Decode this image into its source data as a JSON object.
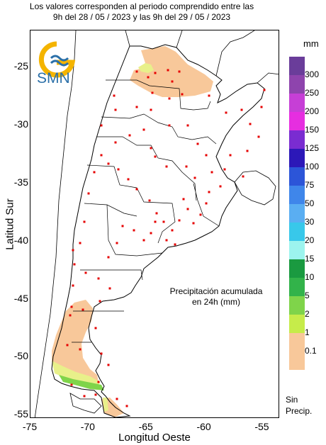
{
  "header": {
    "line1": "Los valores corresponden al periodo comprendido entre las",
    "line2": "9h del 28 / 05 / 2023  y las 9h del 29 / 05 / 2023"
  },
  "axes": {
    "xlabel": "Longitud Oeste",
    "ylabel": "Latitud Sur",
    "x_ticks": [
      "-75",
      "-70",
      "-65",
      "-60",
      "-55"
    ],
    "y_ticks": [
      "-25",
      "-30",
      "-35",
      "-40",
      "-45",
      "-50",
      "-55"
    ],
    "x_range": [
      -75,
      -53.5
    ],
    "y_range": [
      -55.3,
      -21.8
    ]
  },
  "logo": {
    "text": "SMN"
  },
  "annotation": {
    "line1": "Precipitación acumulada",
    "line2": "en 24h (mm)"
  },
  "legend": {
    "unit": "mm",
    "no_precip": "Sin Precip.",
    "items": [
      {
        "label": "300",
        "color": "#6a3d9a"
      },
      {
        "label": "250",
        "color": "#8e44ad"
      },
      {
        "label": "200",
        "color": "#c63fd6"
      },
      {
        "label": "150",
        "color": "#e62ee0"
      },
      {
        "label": "125",
        "color": "#7a2cd1"
      },
      {
        "label": "100",
        "color": "#2c18b8"
      },
      {
        "label": "75",
        "color": "#2c55d8"
      },
      {
        "label": "50",
        "color": "#3f86ea"
      },
      {
        "label": "30",
        "color": "#5aaef2"
      },
      {
        "label": "20",
        "color": "#38c8ea"
      },
      {
        "label": "15",
        "color": "#9cf4ee"
      },
      {
        "label": "10",
        "color": "#1a9a40"
      },
      {
        "label": "5",
        "color": "#32b34a"
      },
      {
        "label": "2",
        "color": "#7fd44a"
      },
      {
        "label": "1",
        "color": "#c6ec4a"
      },
      {
        "label": "0.1",
        "color": "#f8c89a"
      }
    ]
  }
}
